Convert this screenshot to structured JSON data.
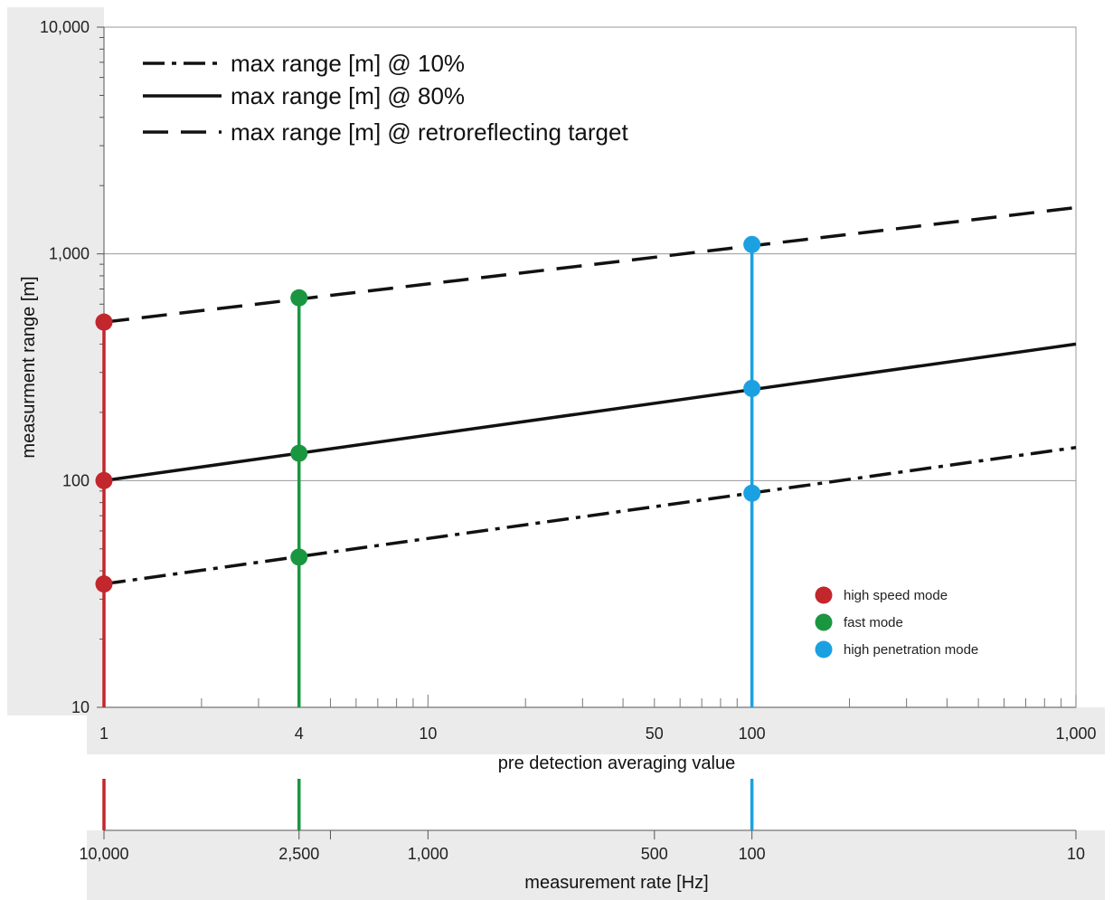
{
  "chart_data": {
    "type": "line",
    "y_scale": "log",
    "x_scale": "log",
    "ylim": [
      10,
      10000
    ],
    "xlim": [
      1,
      1000
    ],
    "ylabel": "measurment range [m]",
    "xlabel": "pre detection averaging value",
    "x2label": "measurement rate [Hz]",
    "y_ticks": [
      {
        "value": 10,
        "label": "10"
      },
      {
        "value": 100,
        "label": "100"
      },
      {
        "value": 1000,
        "label": "1,000"
      },
      {
        "value": 10000,
        "label": "10,000"
      }
    ],
    "x_ticks": [
      {
        "value": 1,
        "label": "1"
      },
      {
        "value": 4,
        "label": "4"
      },
      {
        "value": 10,
        "label": "10"
      },
      {
        "value": 50,
        "label": "50"
      },
      {
        "value": 100,
        "label": "100"
      },
      {
        "value": 1000,
        "label": "1,000"
      }
    ],
    "x2_ticks": [
      {
        "value": 1,
        "label": "10,000"
      },
      {
        "value": 4,
        "label": "2,500"
      },
      {
        "value": 10,
        "label": "1,000"
      },
      {
        "value": 50,
        "label": "500"
      },
      {
        "value": 100,
        "label": "100"
      },
      {
        "value": 1000,
        "label": "10"
      }
    ],
    "series": [
      {
        "name": "max range [m] @ 10%",
        "style": "dashdot",
        "x": [
          1,
          1000
        ],
        "y": [
          35,
          140
        ]
      },
      {
        "name": "max range [m] @ 80%",
        "style": "solid",
        "x": [
          1,
          1000
        ],
        "y": [
          100,
          400
        ]
      },
      {
        "name": "max range [m] @ retroreflecting target",
        "style": "dashed",
        "x": [
          1,
          1000
        ],
        "y": [
          500,
          1600
        ]
      }
    ],
    "modes": [
      {
        "name": "high speed mode",
        "color": "#c1272d",
        "x": 1,
        "points": [
          35,
          100,
          500
        ]
      },
      {
        "name": "fast mode",
        "color": "#1a9641",
        "x": 4,
        "points": [
          46,
          132,
          640
        ]
      },
      {
        "name": "high penetration mode",
        "color": "#1ba1e2",
        "x": 100,
        "points": [
          88,
          255,
          1100
        ]
      }
    ],
    "grid": "major horizontal",
    "legend_placement": "top-left and bottom-right"
  }
}
